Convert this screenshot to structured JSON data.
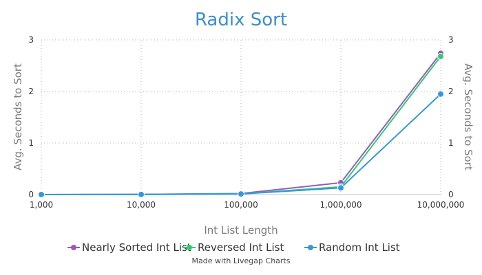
{
  "colors": {
    "title": "#3a8fd1",
    "axis_text": "#7b7b7b",
    "grid": "#b3b3b3",
    "baseline": "#c4c4c4"
  },
  "chart_data": {
    "type": "line",
    "title": "Radix Sort",
    "xlabel": "Int List Length",
    "ylabel": "Avg. Seconds to Sort",
    "ylabel_right": "Avg. Seconds to Sort",
    "x_scale": "categorical",
    "categories": [
      "1,000",
      "10,000",
      "100,000",
      "1,000,000",
      "10,000,000"
    ],
    "ylim": [
      0,
      3
    ],
    "yticks": [
      "0",
      "1",
      "2",
      "3"
    ],
    "grid": true,
    "legend_position": "bottom",
    "series": [
      {
        "name": "Nearly Sorted Int List",
        "color": "#9b59b6",
        "values": [
          0.0,
          0.004,
          0.02,
          0.23,
          2.74
        ]
      },
      {
        "name": "Reversed Int List",
        "color": "#2ecc71",
        "values": [
          0.0,
          0.003,
          0.015,
          0.15,
          2.68
        ]
      },
      {
        "name": "Random Int List",
        "color": "#3498db",
        "values": [
          0.0,
          0.002,
          0.012,
          0.13,
          1.95
        ]
      }
    ]
  },
  "credit": "Made with Livegap Charts"
}
